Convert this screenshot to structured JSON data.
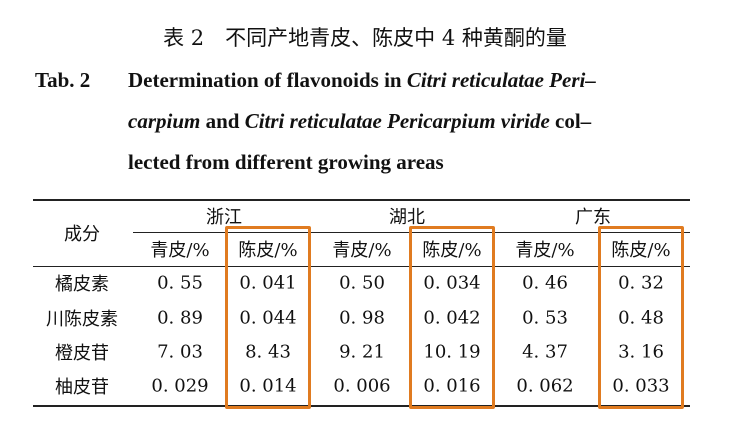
{
  "caption": {
    "title": "表 2　不同产地青皮、陈皮中 4 种黄酮的量",
    "label": "Tab. 2",
    "lines": [
      [
        {
          "text": "Determination of flavonoids in "
        },
        {
          "text": "Citri reticulatae Peri–",
          "italic": true
        }
      ],
      [
        {
          "text": "carpium",
          "italic": true
        },
        {
          "text": " and "
        },
        {
          "text": "Citri reticulatae Pericarpium viride",
          "italic": true
        },
        {
          "text": " col–"
        }
      ],
      [
        {
          "text": "lected from different growing areas"
        }
      ]
    ]
  },
  "table": {
    "corner": "成分",
    "groups": [
      "浙江",
      "湖北",
      "广东"
    ],
    "subheaders": [
      "青皮/%",
      "陈皮/%",
      "青皮/%",
      "陈皮/%",
      "青皮/%",
      "陈皮/%"
    ],
    "highlight_columns": [
      1,
      3,
      5
    ],
    "rows": [
      [
        "橘皮素",
        "0. 55",
        "0. 041",
        "0. 50",
        "0. 034",
        "0. 46",
        "0. 32"
      ],
      [
        "川陈皮素",
        "0. 89",
        "0. 044",
        "0. 98",
        "0. 042",
        "0. 53",
        "0. 48"
      ],
      [
        "橙皮苷",
        "7. 03",
        "8. 43",
        "9. 21",
        "10. 19",
        "4. 37",
        "3. 16"
      ],
      [
        "柚皮苷",
        "0. 029",
        "0. 014",
        "0. 006",
        "0. 016",
        "0. 062",
        "0. 033"
      ]
    ]
  }
}
